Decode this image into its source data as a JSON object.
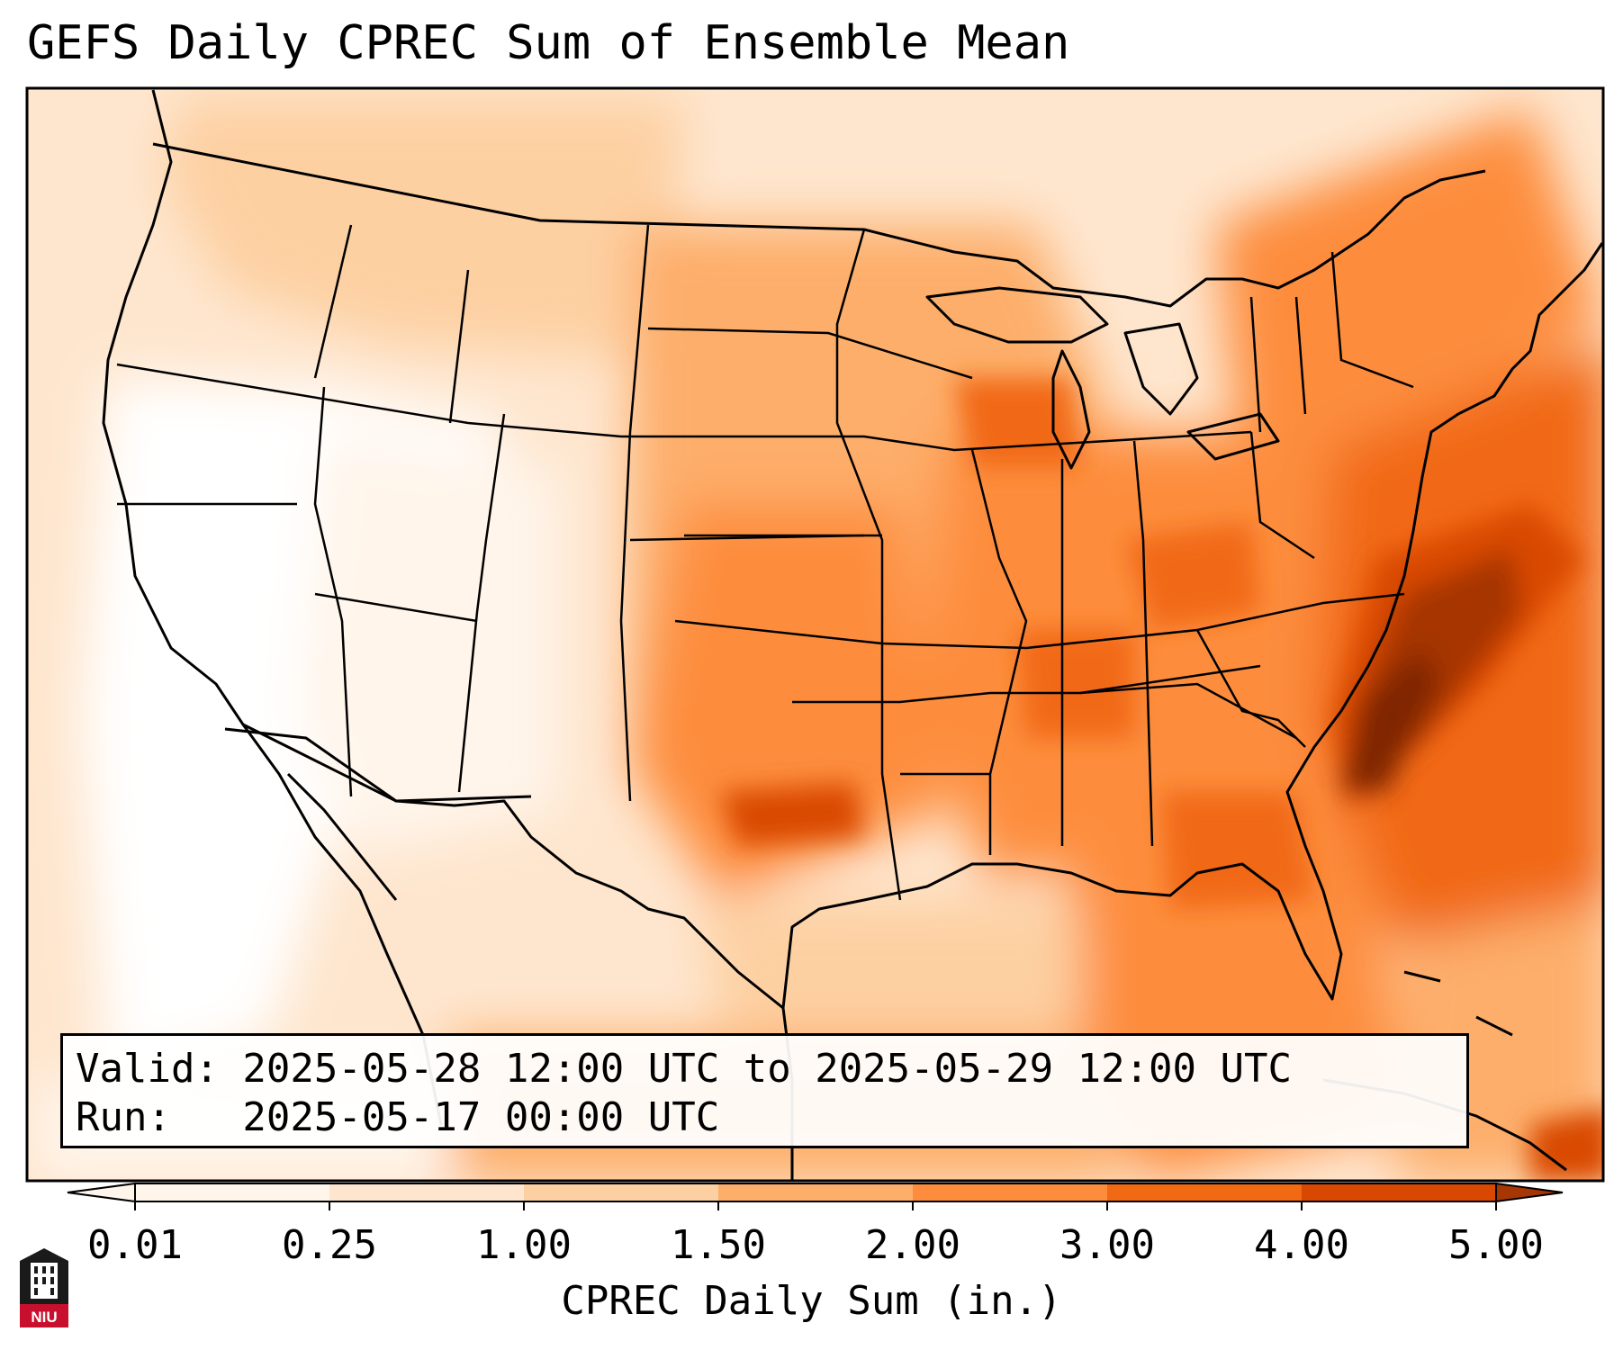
{
  "title": "GEFS Daily CPREC Sum of Ensemble Mean",
  "map": {
    "region": "Contiguous United States",
    "colormap": [
      "#fff5eb",
      "#fee6ce",
      "#fdd0a2",
      "#fdae6b",
      "#fd8d3c",
      "#f16913",
      "#d94801",
      "#a63603",
      "#7f2704"
    ]
  },
  "info": {
    "valid_line": "Valid: 2025-05-28 12:00 UTC to 2025-05-29 12:00 UTC",
    "run_line": "Run:   2025-05-17 00:00 UTC"
  },
  "colorbar": {
    "label": "CPREC Daily Sum (in.)",
    "ticks": [
      "0.01",
      "0.25",
      "1.00",
      "1.50",
      "2.00",
      "3.00",
      "4.00",
      "5.00"
    ],
    "colors": [
      "#fff5eb",
      "#fee6ce",
      "#fdd0a2",
      "#fdae6b",
      "#fd8d3c",
      "#f16913",
      "#d94801",
      "#a63603",
      "#7f2704"
    ]
  },
  "logo": {
    "text": "NIU",
    "icon": "niu-building-logo-icon"
  }
}
